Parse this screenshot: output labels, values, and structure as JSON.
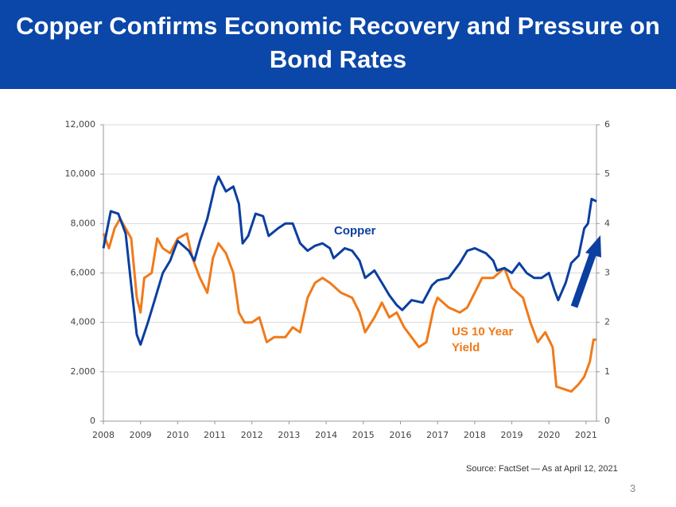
{
  "chart_data": {
    "type": "line",
    "title": "Copper Confirms Economic Recovery and Pressure on Bond Rates",
    "source": "Source: FactSet — As at April 12, 2021",
    "page_number": "3",
    "xlim": [
      2008,
      2021.28
    ],
    "xticks": [
      2008,
      2009,
      2010,
      2011,
      2012,
      2013,
      2014,
      2015,
      2016,
      2017,
      2018,
      2019,
      2020,
      2021
    ],
    "ylim": [
      0,
      12000
    ],
    "yticks": [
      0,
      {
        "value": 2000,
        "label": "2,000"
      },
      {
        "value": 4000,
        "label": "4,000"
      },
      {
        "value": 6000,
        "label": "6,000"
      },
      {
        "value": 8000,
        "label": "8,000"
      },
      {
        "value": 10000,
        "label": "10,000"
      },
      {
        "value": 12000,
        "label": "12,000"
      }
    ],
    "y2lim": [
      0,
      6
    ],
    "y2ticks": [
      0,
      1,
      2,
      3,
      4,
      5,
      6
    ],
    "grid": true,
    "series": [
      {
        "name": "Copper",
        "color": "#0b3fa0",
        "x": [
          2008.0,
          2008.2,
          2008.4,
          2008.6,
          2008.75,
          2008.9,
          2009.0,
          2009.2,
          2009.4,
          2009.6,
          2009.8,
          2010.0,
          2010.3,
          2010.45,
          2010.6,
          2010.8,
          2011.0,
          2011.1,
          2011.3,
          2011.5,
          2011.65,
          2011.75,
          2011.9,
          2012.1,
          2012.3,
          2012.45,
          2012.7,
          2012.9,
          2013.1,
          2013.3,
          2013.5,
          2013.7,
          2013.9,
          2014.1,
          2014.2,
          2014.5,
          2014.7,
          2014.9,
          2015.05,
          2015.3,
          2015.5,
          2015.7,
          2015.9,
          2016.05,
          2016.3,
          2016.6,
          2016.85,
          2017.0,
          2017.3,
          2017.6,
          2017.8,
          2018.0,
          2018.3,
          2018.5,
          2018.6,
          2018.8,
          2019.0,
          2019.2,
          2019.4,
          2019.6,
          2019.8,
          2020.0,
          2020.15,
          2020.25,
          2020.45,
          2020.6,
          2020.8,
          2020.95,
          2021.05,
          2021.15,
          2021.28
        ],
        "values": [
          7000,
          8500,
          8400,
          7600,
          5500,
          3500,
          3100,
          4000,
          5000,
          6000,
          6500,
          7300,
          6900,
          6500,
          7300,
          8200,
          9500,
          9900,
          9300,
          9500,
          8800,
          7200,
          7500,
          8400,
          8300,
          7500,
          7800,
          8000,
          8000,
          7200,
          6900,
          7100,
          7200,
          7000,
          6600,
          7000,
          6900,
          6500,
          5800,
          6100,
          5600,
          5100,
          4700,
          4500,
          4900,
          4800,
          5500,
          5700,
          5800,
          6400,
          6900,
          7000,
          6800,
          6500,
          6100,
          6200,
          6000,
          6400,
          6000,
          5800,
          5800,
          6000,
          5300,
          4900,
          5600,
          6400,
          6700,
          7800,
          8000,
          9000,
          8900
        ]
      },
      {
        "name": "US 10 Year Yield",
        "color": "#f07a1a",
        "axis": "y2",
        "x": [
          2008.0,
          2008.15,
          2008.3,
          2008.45,
          2008.6,
          2008.75,
          2008.9,
          2009.0,
          2009.1,
          2009.3,
          2009.45,
          2009.6,
          2009.8,
          2010.0,
          2010.25,
          2010.4,
          2010.6,
          2010.8,
          2010.95,
          2011.1,
          2011.3,
          2011.5,
          2011.65,
          2011.8,
          2012.0,
          2012.2,
          2012.4,
          2012.6,
          2012.9,
          2013.1,
          2013.3,
          2013.5,
          2013.7,
          2013.9,
          2014.1,
          2014.4,
          2014.7,
          2014.9,
          2015.05,
          2015.3,
          2015.5,
          2015.7,
          2015.9,
          2016.1,
          2016.5,
          2016.7,
          2016.9,
          2017.0,
          2017.3,
          2017.6,
          2017.8,
          2018.0,
          2018.2,
          2018.5,
          2018.8,
          2019.0,
          2019.3,
          2019.5,
          2019.7,
          2019.9,
          2020.1,
          2020.2,
          2020.4,
          2020.6,
          2020.8,
          2020.95,
          2021.1,
          2021.2,
          2021.28
        ],
        "values": [
          3.8,
          3.5,
          3.9,
          4.1,
          3.9,
          3.7,
          2.5,
          2.2,
          2.9,
          3.0,
          3.7,
          3.5,
          3.4,
          3.7,
          3.8,
          3.3,
          2.9,
          2.6,
          3.3,
          3.6,
          3.4,
          3.0,
          2.2,
          2.0,
          2.0,
          2.1,
          1.6,
          1.7,
          1.7,
          1.9,
          1.8,
          2.5,
          2.8,
          2.9,
          2.8,
          2.6,
          2.5,
          2.2,
          1.8,
          2.1,
          2.4,
          2.1,
          2.2,
          1.9,
          1.5,
          1.6,
          2.3,
          2.5,
          2.3,
          2.2,
          2.3,
          2.6,
          2.9,
          2.9,
          3.1,
          2.7,
          2.5,
          2.0,
          1.6,
          1.8,
          1.5,
          0.7,
          0.65,
          0.6,
          0.75,
          0.9,
          1.2,
          1.65,
          1.65
        ]
      }
    ]
  }
}
